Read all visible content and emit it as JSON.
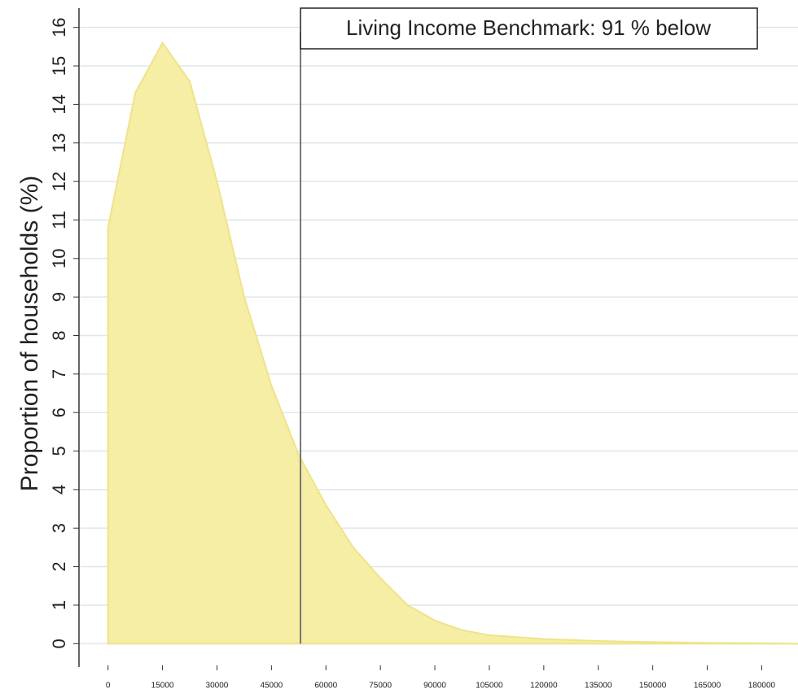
{
  "chart_data": {
    "type": "area",
    "y_label": "Proportion of households (%)",
    "x": [
      0,
      7500,
      15000,
      22500,
      30000,
      37500,
      45000,
      52500,
      60000,
      67500,
      75000,
      82500,
      90000,
      97500,
      105000,
      120000,
      135000,
      150000,
      165000,
      180000,
      190000
    ],
    "series": [
      {
        "color": "#f5eea4",
        "values": [
          10.8,
          14.3,
          15.6,
          14.6,
          12,
          9,
          6.7,
          4.9,
          3.6,
          2.5,
          1.7,
          1.0,
          0.6,
          0.35,
          0.22,
          0.12,
          0.07,
          0.04,
          0.02,
          0.01,
          0
        ]
      }
    ],
    "xlim": [
      -8000,
      190000
    ],
    "ylim": [
      -0.5,
      16.5
    ],
    "xticks": [
      0,
      15000,
      30000,
      45000,
      60000,
      75000,
      90000,
      105000,
      120000,
      135000,
      150000,
      165000,
      180000
    ],
    "yticks": [
      0,
      1,
      2,
      3,
      4,
      5,
      6,
      7,
      8,
      9,
      10,
      11,
      12,
      13,
      14,
      15,
      16
    ],
    "grid": true,
    "annotation": {
      "x": 53000,
      "label": "Living Income Benchmark: 91 % below"
    }
  }
}
